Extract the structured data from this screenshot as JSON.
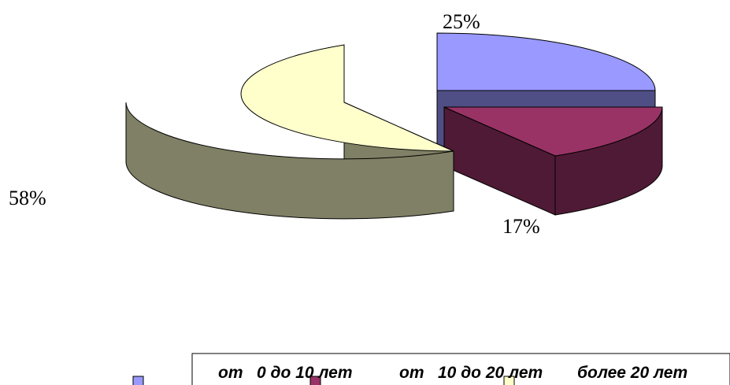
{
  "chart_data": {
    "type": "pie",
    "title": "",
    "categories": [
      "от   0 до 10 лет",
      "от   10 до 20 лет",
      "более 20 лет"
    ],
    "values": [
      25,
      17,
      58
    ],
    "value_labels": [
      "25%",
      "17%",
      "58%"
    ],
    "colors": [
      "#9999ff",
      "#993366",
      "#ffffcc"
    ],
    "side_colors": [
      "#4f4f85",
      "#4f1a35",
      "#808066"
    ],
    "three_d": true,
    "exploded": true,
    "legend_position": "bottom"
  }
}
